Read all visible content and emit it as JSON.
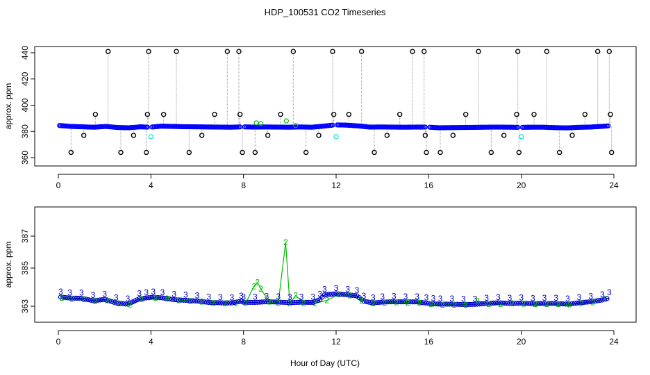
{
  "chart_data": [
    {
      "type": "scatter",
      "title": "HDP_100531  CO2 Timeseries",
      "xlabel": "",
      "ylabel": "approx. ppm",
      "xlim": [
        0,
        24
      ],
      "ylim": [
        358,
        444
      ],
      "xticks": [
        0,
        4,
        8,
        12,
        16,
        20,
        24
      ],
      "yticks": [
        360,
        380,
        400,
        420,
        440
      ],
      "colors": {
        "baseline": "#0000ff",
        "open": "#000000",
        "green": "#00bb00",
        "cyan": "#00dddd",
        "spikes": "#999999"
      },
      "series": [
        {
          "values": {
            "x": [
              0.05,
              0.55,
              1.05,
              1.55,
              2.05,
              2.55,
              3.05,
              3.55,
              3.95,
              4.45,
              4.95,
              5.45,
              5.95,
              6.45,
              6.95,
              7.45,
              7.95,
              8.45,
              8.95,
              9.45,
              9.95,
              10.45,
              10.95,
              11.45,
              11.95,
              12.45,
              12.95,
              13.45,
              13.95,
              14.45,
              14.95,
              15.45,
              15.95,
              16.45,
              16.95,
              17.45,
              17.95,
              18.45,
              18.95,
              19.45,
              19.95,
              20.45,
              20.95,
              21.45,
              21.95,
              22.45,
              22.95,
              23.45,
              23.75
            ],
            "y": [
              384.5,
              383.8,
              383.5,
              383.2,
              383.8,
              383.0,
              382.8,
              383.5,
              383.2,
              384.0,
              383.8,
              383.6,
              383.5,
              383.4,
              383.3,
              383.2,
              383.5,
              383.3,
              383.4,
              383.3,
              383.2,
              383.4,
              383.2,
              384.0,
              385.0,
              384.8,
              384.2,
              383.3,
              383.4,
              383.3,
              383.2,
              383.3,
              383.3,
              382.8,
              382.9,
              383.0,
              383.1,
              383.2,
              383.3,
              383.2,
              383.1,
              383.2,
              383.2,
              382.9,
              382.7,
              383.1,
              383.3,
              383.8,
              384.2
            ]
          }
        },
        {
          "values": {
            "x": [
              0.55,
              1.1,
              1.6,
              2.15,
              2.7,
              3.25,
              3.8,
              3.85,
              3.9,
              4.55,
              5.1,
              5.65,
              6.2,
              6.75,
              7.3,
              7.8,
              7.85,
              7.95,
              8.5,
              9.05,
              9.6,
              10.15,
              10.7,
              11.25,
              11.85,
              11.9,
              12.55,
              13.1,
              13.65,
              14.2,
              14.75,
              15.3,
              15.8,
              15.85,
              15.9,
              16.5,
              17.05,
              17.6,
              18.15,
              18.7,
              19.25,
              19.8,
              19.85,
              19.9,
              20.55,
              21.1,
              21.65,
              22.2,
              22.75,
              23.3,
              23.8,
              23.85,
              23.9
            ],
            "y": [
              364,
              377,
              393,
              441,
              364,
              377,
              364,
              393,
              441,
              393,
              441,
              364,
              377,
              393,
              441,
              441,
              393,
              364,
              364,
              377,
              393,
              441,
              364,
              377,
              441,
              393,
              393,
              441,
              364,
              377,
              393,
              441,
              441,
              377,
              364,
              364,
              377,
              393,
              441,
              364,
              377,
              393,
              441,
              364,
              393,
              441,
              364,
              377,
              393,
              441,
              441,
              393,
              364
            ]
          }
        },
        {
          "values": {
            "x": [
              8.55,
              8.75,
              9.85,
              10.25
            ],
            "y": [
              386.5,
              386,
              388,
              384.5
            ]
          }
        },
        {
          "values": {
            "x": [
              4.0,
              12.0,
              20.0
            ],
            "y": [
              376,
              376,
              376
            ]
          }
        }
      ]
    },
    {
      "type": "scatter",
      "title": "",
      "xlabel": "Hour of Day (UTC)",
      "ylabel": "approx. ppm",
      "xlim": [
        0,
        24
      ],
      "ylim": [
        362.2,
        388.2
      ],
      "xticks": [
        0,
        4,
        8,
        12,
        16,
        20,
        24
      ],
      "yticks": [
        363,
        385,
        387
      ],
      "ytick_labels": [
        "363",
        "385",
        "387"
      ],
      "colors": {
        "series3": "#0000cc",
        "series2": "#00bb00"
      },
      "series": [
        {
          "marker": "3",
          "values": {
            "x": [
              0.1,
              0.5,
              1.0,
              1.5,
              2.0,
              2.5,
              3.0,
              3.5,
              3.8,
              4.1,
              4.5,
              5.0,
              5.5,
              6.0,
              6.5,
              7.0,
              7.5,
              7.9,
              8.0,
              8.5,
              9.0,
              9.5,
              10.0,
              10.5,
              11.0,
              11.3,
              11.5,
              12.0,
              12.5,
              12.9,
              13.2,
              13.6,
              14.0,
              14.5,
              15.0,
              15.5,
              15.9,
              16.2,
              16.5,
              17.0,
              17.5,
              18.0,
              18.5,
              19.0,
              19.5,
              20.0,
              20.5,
              21.0,
              21.5,
              22.0,
              22.5,
              23.0,
              23.5,
              23.8
            ],
            "y": [
              368.3,
              367.7,
              367.6,
              366.2,
              366.9,
              364.9,
              364.2,
              367.3,
              367.8,
              368.2,
              367.8,
              366.8,
              366.4,
              366.0,
              365.2,
              365.0,
              364.9,
              365.9,
              365.3,
              365.2,
              365.6,
              365.4,
              365.1,
              365.3,
              365.2,
              366.8,
              369.6,
              370.2,
              369.6,
              369.0,
              365.9,
              364.9,
              365.4,
              365.6,
              365.5,
              365.5,
              364.8,
              364.4,
              364.2,
              364.2,
              364.0,
              364.1,
              364.6,
              365.0,
              364.6,
              364.8,
              364.5,
              364.6,
              364.6,
              364.2,
              365.0,
              365.6,
              366.6,
              367.8
            ]
          }
        },
        {
          "marker": "2",
          "values": {
            "x": [
              0.15,
              0.6,
              1.1,
              1.6,
              2.1,
              2.6,
              3.1,
              3.6,
              4.2,
              4.7,
              5.2,
              5.7,
              6.2,
              6.7,
              7.2,
              7.7,
              8.1,
              8.45,
              8.6,
              8.75,
              9.1,
              9.5,
              9.82,
              10.0,
              10.25,
              10.6,
              11.1,
              11.6,
              12.1,
              12.6,
              13.1,
              13.6,
              14.1,
              14.6,
              15.1,
              15.6,
              16.1,
              16.6,
              17.1,
              17.6,
              18.1,
              18.6,
              19.1,
              19.6,
              20.1,
              20.6,
              21.1,
              21.6,
              22.1,
              22.6,
              23.1,
              23.6
            ],
            "y": [
              367.9,
              367.3,
              367.0,
              365.8,
              366.5,
              364.6,
              364.0,
              367.0,
              367.9,
              367.4,
              366.5,
              366.1,
              365.7,
              364.9,
              364.7,
              364.6,
              364.8,
              374.5,
              376.8,
              373.0,
              365.6,
              364.8,
              386.6,
              364.7,
              369.2,
              364.9,
              364.7,
              366.4,
              369.8,
              369.3,
              366.3,
              364.6,
              365.1,
              365.2,
              365.1,
              365.0,
              364.3,
              363.9,
              363.9,
              363.8,
              366.1,
              364.2,
              364.3,
              364.6,
              364.4,
              364.2,
              364.3,
              364.2,
              364.0,
              364.6,
              365.3,
              367.2
            ]
          }
        }
      ]
    }
  ]
}
